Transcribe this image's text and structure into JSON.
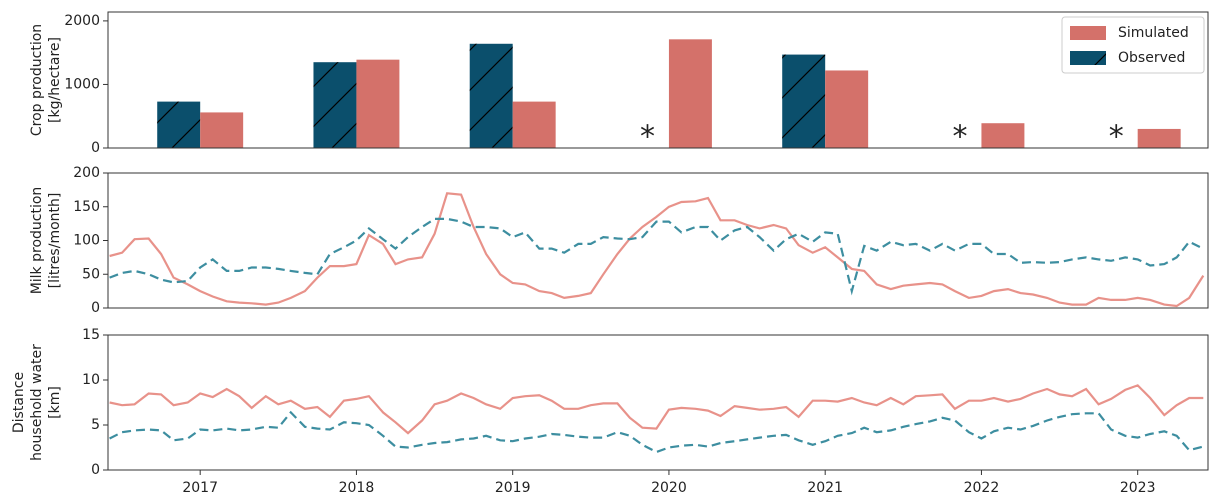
{
  "chart_data": [
    {
      "type": "bar",
      "ylabel": [
        "Crop production",
        "[kg/hectare]"
      ],
      "x": [
        2017,
        2018,
        2019,
        2020,
        2021,
        2022,
        2023
      ],
      "series": [
        {
          "name": "Observed",
          "color": "#0b4f6c",
          "hatch": true,
          "values": [
            730,
            1350,
            1640,
            null,
            1470,
            null,
            null
          ]
        },
        {
          "name": "Simulated",
          "color": "#d4716a",
          "hatch": false,
          "values": [
            560,
            1390,
            730,
            1710,
            1220,
            390,
            300
          ]
        }
      ],
      "missing_label": "*",
      "xlim": [
        2016.41,
        2023.45
      ],
      "ylim": [
        0,
        2140
      ],
      "yticks": [
        0,
        1000,
        2000
      ],
      "legend": "upper right",
      "legend_order": [
        1,
        0
      ]
    },
    {
      "type": "line",
      "ylabel": [
        "Milk production",
        "[litres/month]"
      ],
      "x": [
        2016.42,
        2016.5,
        2016.58,
        2016.67,
        2016.75,
        2016.83,
        2016.92,
        2017,
        2017.08,
        2017.17,
        2017.25,
        2017.33,
        2017.42,
        2017.5,
        2017.58,
        2017.67,
        2017.75,
        2017.83,
        2017.92,
        2018,
        2018.08,
        2018.17,
        2018.25,
        2018.33,
        2018.42,
        2018.5,
        2018.58,
        2018.67,
        2018.75,
        2018.83,
        2018.92,
        2019,
        2019.08,
        2019.17,
        2019.25,
        2019.33,
        2019.42,
        2019.5,
        2019.58,
        2019.67,
        2019.75,
        2019.83,
        2019.92,
        2020,
        2020.08,
        2020.17,
        2020.25,
        2020.33,
        2020.42,
        2020.5,
        2020.58,
        2020.67,
        2020.75,
        2020.83,
        2020.92,
        2021,
        2021.08,
        2021.17,
        2021.25,
        2021.33,
        2021.42,
        2021.5,
        2021.58,
        2021.67,
        2021.75,
        2021.83,
        2021.92,
        2022,
        2022.08,
        2022.17,
        2022.25,
        2022.33,
        2022.42,
        2022.5,
        2022.58,
        2022.67,
        2022.75,
        2022.83,
        2022.92,
        2023,
        2023.08,
        2023.17,
        2023.25,
        2023.33,
        2023.42
      ],
      "series": [
        {
          "color": "#e8928a",
          "dash": false,
          "values": [
            77,
            82,
            102,
            103,
            80,
            45,
            35,
            25,
            17,
            10,
            8,
            7,
            5,
            8,
            15,
            25,
            45,
            62,
            62,
            65,
            108,
            95,
            65,
            72,
            75,
            110,
            170,
            168,
            120,
            80,
            50,
            37,
            35,
            25,
            22,
            15,
            18,
            22,
            50,
            80,
            103,
            120,
            135,
            150,
            157,
            158,
            163,
            130,
            130,
            123,
            118,
            123,
            118,
            93,
            82,
            90,
            75,
            58,
            55,
            35,
            28,
            33,
            35,
            37,
            35,
            25,
            15,
            18,
            25,
            28,
            22,
            20,
            15,
            8,
            5,
            5,
            15,
            12,
            12,
            15,
            12,
            5,
            3,
            15,
            48
          ]
        },
        {
          "color": "#3d8ea0",
          "dash": true,
          "values": [
            45,
            52,
            55,
            50,
            42,
            38,
            40,
            60,
            72,
            55,
            55,
            60,
            60,
            58,
            55,
            52,
            50,
            80,
            90,
            100,
            118,
            102,
            88,
            105,
            120,
            132,
            132,
            128,
            120,
            120,
            118,
            105,
            112,
            88,
            88,
            82,
            95,
            95,
            105,
            103,
            102,
            105,
            128,
            128,
            112,
            120,
            120,
            100,
            115,
            120,
            105,
            85,
            102,
            110,
            98,
            112,
            110,
            25,
            92,
            85,
            98,
            93,
            95,
            85,
            95,
            85,
            95,
            95,
            80,
            80,
            67,
            68,
            67,
            68,
            72,
            75,
            72,
            70,
            75,
            72,
            63,
            65,
            75,
            98,
            88
          ]
        }
      ],
      "xlim": [
        2016.41,
        2023.45
      ],
      "ylim": [
        0,
        200
      ],
      "yticks": [
        0,
        50,
        100,
        150,
        200
      ]
    },
    {
      "type": "line",
      "ylabel": [
        "Distance",
        "household water",
        "[km]"
      ],
      "x": [
        2016.42,
        2016.5,
        2016.58,
        2016.67,
        2016.75,
        2016.83,
        2016.92,
        2017,
        2017.08,
        2017.17,
        2017.25,
        2017.33,
        2017.42,
        2017.5,
        2017.58,
        2017.67,
        2017.75,
        2017.83,
        2017.92,
        2018,
        2018.08,
        2018.17,
        2018.25,
        2018.33,
        2018.42,
        2018.5,
        2018.58,
        2018.67,
        2018.75,
        2018.83,
        2018.92,
        2019,
        2019.08,
        2019.17,
        2019.25,
        2019.33,
        2019.42,
        2019.5,
        2019.58,
        2019.67,
        2019.75,
        2019.83,
        2019.92,
        2020,
        2020.08,
        2020.17,
        2020.25,
        2020.33,
        2020.42,
        2020.5,
        2020.58,
        2020.67,
        2020.75,
        2020.83,
        2020.92,
        2021,
        2021.08,
        2021.17,
        2021.25,
        2021.33,
        2021.42,
        2021.5,
        2021.58,
        2021.67,
        2021.75,
        2021.83,
        2021.92,
        2022,
        2022.08,
        2022.17,
        2022.25,
        2022.33,
        2022.42,
        2022.5,
        2022.58,
        2022.67,
        2022.75,
        2022.83,
        2022.92,
        2023,
        2023.08,
        2023.17,
        2023.25,
        2023.33,
        2023.42
      ],
      "series": [
        {
          "color": "#e8928a",
          "dash": false,
          "values": [
            7.5,
            7.2,
            7.3,
            8.5,
            8.4,
            7.2,
            7.5,
            8.5,
            8.1,
            9.0,
            8.2,
            6.9,
            8.2,
            7.3,
            7.7,
            6.8,
            7.0,
            5.9,
            7.7,
            7.9,
            8.2,
            6.4,
            5.3,
            4.1,
            5.5,
            7.3,
            7.7,
            8.5,
            8.0,
            7.3,
            6.8,
            8.0,
            8.2,
            8.3,
            7.7,
            6.8,
            6.8,
            7.2,
            7.4,
            7.4,
            5.8,
            4.7,
            4.6,
            6.7,
            6.9,
            6.8,
            6.6,
            6.0,
            7.1,
            6.9,
            6.7,
            6.8,
            7.0,
            5.9,
            7.7,
            7.7,
            7.6,
            8.0,
            7.5,
            7.2,
            8.0,
            7.3,
            8.2,
            8.3,
            8.4,
            6.8,
            7.7,
            7.7,
            8.0,
            7.6,
            7.9,
            8.5,
            9.0,
            8.4,
            8.2,
            9.0,
            7.3,
            7.9,
            8.9,
            9.4,
            8.0,
            6.1,
            7.2,
            8.0,
            8.0
          ]
        },
        {
          "color": "#3d8ea0",
          "dash": true,
          "values": [
            3.5,
            4.2,
            4.4,
            4.5,
            4.4,
            3.3,
            3.5,
            4.5,
            4.4,
            4.6,
            4.4,
            4.5,
            4.8,
            4.7,
            6.4,
            4.8,
            4.6,
            4.5,
            5.3,
            5.2,
            5.0,
            3.8,
            2.6,
            2.5,
            2.8,
            3.0,
            3.1,
            3.4,
            3.5,
            3.8,
            3.3,
            3.2,
            3.5,
            3.7,
            4.0,
            3.9,
            3.7,
            3.6,
            3.6,
            4.2,
            3.8,
            2.8,
            2.0,
            2.5,
            2.7,
            2.8,
            2.6,
            3.0,
            3.2,
            3.4,
            3.6,
            3.8,
            3.9,
            3.3,
            2.8,
            3.2,
            3.8,
            4.1,
            4.7,
            4.2,
            4.4,
            4.8,
            5.1,
            5.4,
            5.8,
            5.5,
            4.2,
            3.5,
            4.3,
            4.7,
            4.5,
            4.9,
            5.5,
            5.9,
            6.2,
            6.3,
            6.3,
            4.5,
            3.8,
            3.6,
            4.0,
            4.3,
            3.8,
            2.2,
            2.6
          ]
        }
      ],
      "xlim": [
        2016.41,
        2023.45
      ],
      "ylim": [
        0,
        15
      ],
      "yticks": [
        0,
        5,
        10,
        15
      ],
      "xticks": [
        2017,
        2018,
        2019,
        2020,
        2021,
        2022,
        2023
      ]
    }
  ]
}
